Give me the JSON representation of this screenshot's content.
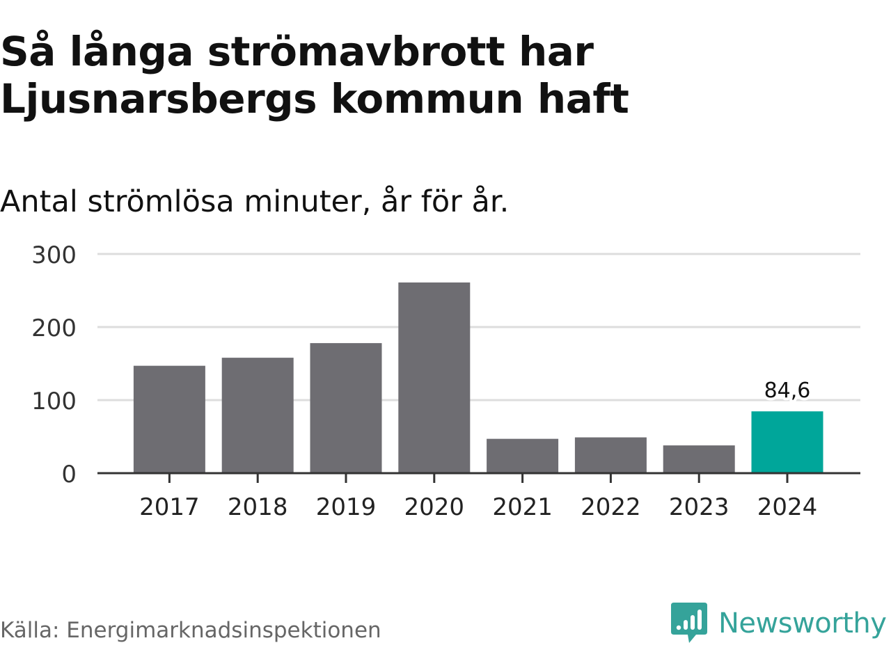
{
  "header": {
    "title": "Så långa strömavbrott har Ljusnarsbergs kommun haft",
    "subtitle": "Antal strömlösa minuter, år för år."
  },
  "footer": {
    "source": "Källa: Energimarknadsinspektionen",
    "brand": "Newsworthy",
    "brand_icon": "newsworthy-logo-icon"
  },
  "colors": {
    "bar": "#6e6d72",
    "highlight": "#00a69a",
    "grid": "#dddddd",
    "axis": "#333333",
    "brand": "#35a39a"
  },
  "chart_data": {
    "type": "bar",
    "title": "Så långa strömavbrott har Ljusnarsbergs kommun haft",
    "subtitle": "Antal strömlösa minuter, år för år.",
    "xlabel": "",
    "ylabel": "",
    "categories": [
      "2017",
      "2018",
      "2019",
      "2020",
      "2021",
      "2022",
      "2023",
      "2024"
    ],
    "values": [
      147,
      158,
      178,
      261,
      47,
      49,
      38,
      84.6
    ],
    "highlight_index": 7,
    "data_labels": [
      {
        "index": 7,
        "text": "84,6"
      }
    ],
    "ylim": [
      0,
      300
    ],
    "yticks": [
      0,
      100,
      200,
      300
    ],
    "ytick_labels": [
      "0",
      "100",
      "200",
      "300"
    ],
    "grid": true,
    "legend": "none"
  }
}
